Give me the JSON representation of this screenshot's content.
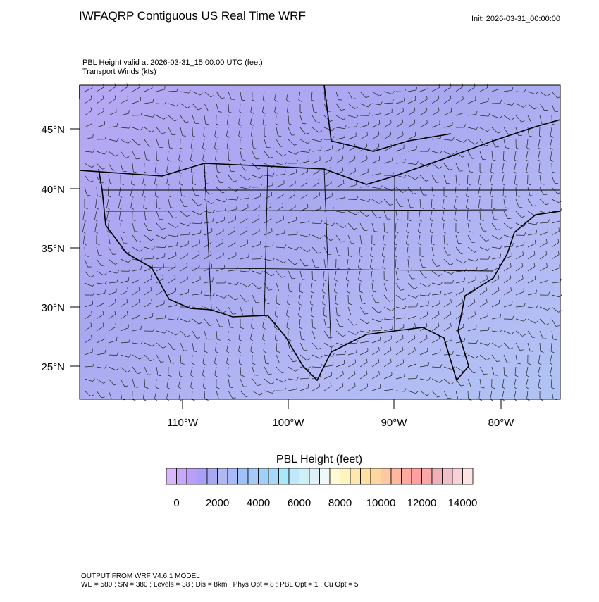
{
  "title": "IWFAQRP Contiguous US Real Time WRF",
  "init": "Init: 2026-03-31_00:00:00",
  "subtitle": [
    "PBL Height valid at 2026-03-31_15:00:00 UTC   (feet)",
    "Transport Winds   (kts)"
  ],
  "lat_labels": [
    "45°N",
    "40°N",
    "35°N",
    "30°N",
    "25°N"
  ],
  "lon_labels": [
    "110°W",
    "100°W",
    "90°W",
    "80°W"
  ],
  "colorbar": {
    "title": "PBL Height  (feet)",
    "labels": [
      "0",
      "2000",
      "4000",
      "6000",
      "8000",
      "10000",
      "12000",
      "14000"
    ],
    "colors": [
      "#d8b8f8",
      "#c8a8f8",
      "#b8a0f8",
      "#a8a0f8",
      "#a8a8f0",
      "#b0b8f0",
      "#a8b8f8",
      "#a0c0f8",
      "#a8c8f8",
      "#a0d0f8",
      "#a8d8f8",
      "#a8e8f8",
      "#c0e8f8",
      "#d0f0f8",
      "#e0f0f8",
      "#f0f8f8",
      "#fffbd8",
      "#fff4c0",
      "#ffe8b0",
      "#ffe0a0",
      "#ffd8a0",
      "#ffc8a0",
      "#ffb8a0",
      "#ffa8a0",
      "#ffa0a0",
      "#f8a8a8",
      "#f0b0b8",
      "#f0c0c8",
      "#f8d0d8",
      "#fce4e4"
    ]
  },
  "footer": [
    "OUTPUT FROM WRF V4.6.1 MODEL",
    "WE = 580 ; SN = 380 ; Levels = 38 ; Dis = 8km ; Phys Opt = 8 ; PBL Opt = 1 ; Cu Opt = 5"
  ]
}
